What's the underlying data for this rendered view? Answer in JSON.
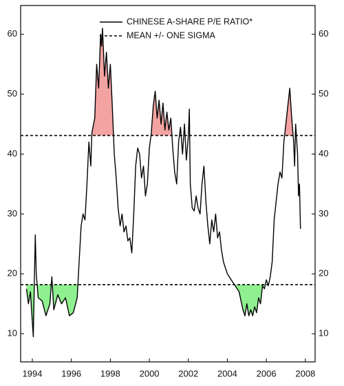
{
  "chart_data": {
    "type": "line",
    "series": [
      {
        "name": "CHINESE A-SHARE P/E RATIO*",
        "color": "#000000",
        "x": [
          1993.7,
          1993.8,
          1993.9,
          1994.0,
          1994.05,
          1994.1,
          1994.15,
          1994.2,
          1994.3,
          1994.5,
          1994.7,
          1994.9,
          1995.0,
          1995.1,
          1995.3,
          1995.5,
          1995.7,
          1995.9,
          1996.1,
          1996.3,
          1996.4,
          1996.5,
          1996.6,
          1996.7,
          1996.8,
          1996.9,
          1997.0,
          1997.05,
          1997.2,
          1997.3,
          1997.4,
          1997.5,
          1997.55,
          1997.6,
          1997.7,
          1997.8,
          1997.9,
          1998.0,
          1998.1,
          1998.2,
          1998.3,
          1998.4,
          1998.5,
          1998.6,
          1998.7,
          1998.8,
          1998.9,
          1999.0,
          1999.1,
          1999.2,
          1999.3,
          1999.4,
          1999.5,
          1999.6,
          1999.7,
          1999.8,
          1999.9,
          2000.0,
          2000.1,
          2000.2,
          2000.3,
          2000.4,
          2000.5,
          2000.6,
          2000.7,
          2000.8,
          2000.9,
          2001.0,
          2001.1,
          2001.2,
          2001.3,
          2001.4,
          2001.5,
          2001.6,
          2001.7,
          2001.8,
          2001.9,
          2002.0,
          2002.05,
          2002.1,
          2002.2,
          2002.3,
          2002.4,
          2002.5,
          2002.6,
          2002.7,
          2002.8,
          2002.9,
          2003.0,
          2003.1,
          2003.2,
          2003.3,
          2003.4,
          2003.5,
          2003.6,
          2003.7,
          2003.8,
          2003.9,
          2004.0,
          2004.2,
          2004.4,
          2004.6,
          2004.8,
          2004.9,
          2005.0,
          2005.1,
          2005.2,
          2005.3,
          2005.4,
          2005.5,
          2005.6,
          2005.7,
          2005.8,
          2005.9,
          2006.0,
          2006.1,
          2006.2,
          2006.3,
          2006.4,
          2006.5,
          2006.6,
          2006.7,
          2006.8,
          2006.9,
          2007.0,
          2007.1,
          2007.2,
          2007.3,
          2007.4,
          2007.45,
          2007.5,
          2007.6,
          2007.65,
          2007.7,
          2007.75
        ],
        "values": [
          17.5,
          15,
          17,
          12,
          9.5,
          18,
          26.5,
          20,
          16,
          15.5,
          13,
          15,
          19.5,
          14,
          16.5,
          15,
          16,
          13,
          13.5,
          16,
          22,
          28,
          30,
          29,
          35,
          42,
          38,
          43.5,
          46,
          55,
          51,
          60,
          58,
          61,
          53,
          57,
          51,
          55,
          48,
          40,
          36,
          31,
          28,
          30,
          27,
          28,
          25.5,
          26,
          23.5,
          30,
          38,
          41,
          40,
          36,
          38,
          33,
          35,
          41,
          43.5,
          48,
          50.5,
          46,
          49,
          45,
          48.5,
          44,
          47,
          44,
          46,
          41,
          37,
          35,
          42,
          44.5,
          40,
          45,
          39,
          43,
          47.5,
          35,
          31,
          30.5,
          33,
          31,
          30,
          35,
          38,
          32,
          28,
          25,
          29,
          27,
          30,
          26,
          27,
          24,
          22,
          21,
          20,
          19,
          18,
          17,
          14,
          13,
          15,
          13,
          14,
          13,
          14.5,
          13.5,
          16,
          15,
          18,
          17.5,
          19,
          18,
          19.5,
          22,
          29,
          32,
          35,
          37,
          36,
          42,
          45,
          48,
          51,
          46,
          42,
          38,
          45,
          40,
          33,
          35,
          27.5
        ]
      }
    ],
    "reference_lines": {
      "name": "MEAN +/- ONE SIGMA",
      "values": [
        43.1,
        18.2
      ],
      "style": "dashed",
      "colors": [
        "#f4a3a3",
        "#8ff08f"
      ]
    },
    "xlim": [
      1993.4,
      2008.5
    ],
    "xticks": [
      1994,
      1996,
      1998,
      2000,
      2002,
      2004,
      2006,
      2008
    ],
    "ylim": [
      5.3,
      64.8
    ],
    "yticks": [
      10,
      20,
      30,
      40,
      50,
      60
    ],
    "right_axis_labels": true
  }
}
